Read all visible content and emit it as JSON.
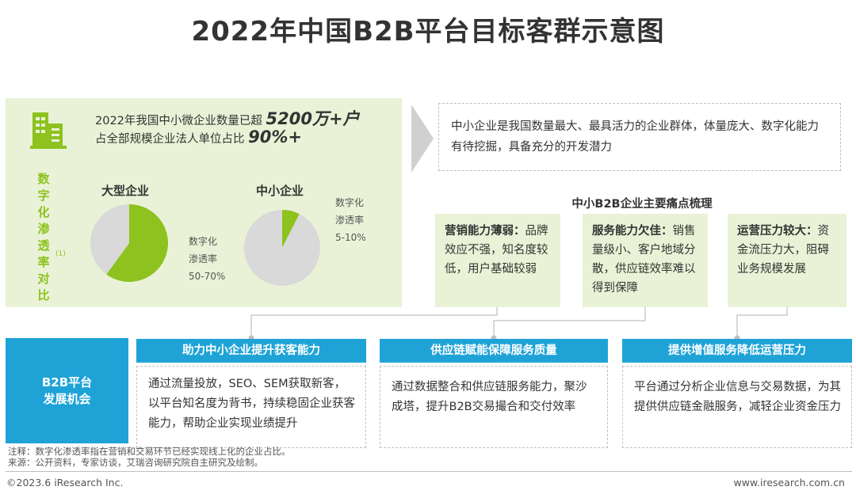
{
  "title": "2022年中国B2B平台目标客群示意图",
  "left_panel": {
    "stat_line1_prefix": "2022年我国中小微企业数量已超",
    "stat_line1_value": "5200万+户",
    "stat_line2_prefix": "占全部规模企业法人单位占比",
    "stat_line2_value": "90%+",
    "vertical_label": [
      "数",
      "字",
      "化",
      "渗",
      "透",
      "率",
      "对",
      "比"
    ],
    "vertical_note": "(1)",
    "large_enterprise": {
      "label": "大型企业",
      "rate_label_1": "数字化",
      "rate_label_2": "渗透率",
      "rate_value": "50-70%"
    },
    "small_enterprise": {
      "label": "中小企业",
      "rate_label_1": "数字化",
      "rate_label_2": "渗透率",
      "rate_value": "5-10%"
    }
  },
  "colors": {
    "accent_green": "#8dc21f",
    "pie_green": "#8dc21f",
    "pie_gray": "#d9d9d9",
    "panel_green": "#e9f2d6",
    "accent_blue": "#1fa3d7"
  },
  "chart_data": [
    {
      "type": "pie",
      "title": "大型企业",
      "slices": [
        {
          "value": 60,
          "color": "#8dc21f"
        },
        {
          "value": 40,
          "color": "#d9d9d9"
        }
      ]
    },
    {
      "type": "pie",
      "title": "中小企业",
      "slices": [
        {
          "value": 7.5,
          "color": "#8dc21f"
        },
        {
          "value": 92.5,
          "color": "#d9d9d9"
        }
      ]
    }
  ],
  "description": "中小企业是我国数量最大、最具活力的企业群体，体量庞大、数字化能力有待挖掘，具备充分的开发潜力",
  "pain_title": "中小B2B企业主要痛点梳理",
  "pain_points": [
    {
      "head": "营销能力薄弱：",
      "body": "品牌效应不强，知名度较低，用户基础较弱"
    },
    {
      "head": "服务能力欠佳：",
      "body": "销售量级小、客户地域分散，供应链效率难以得到保障"
    },
    {
      "head": "运营压力较大：",
      "body": "资金流压力大，阻碍业务规模发展"
    }
  ],
  "b2b_box": {
    "line1": "B2B平台",
    "line2": "发展机会"
  },
  "opportunities": [
    {
      "head": "助力中小企业提升获客能力",
      "body": "通过流量投放，SEO、SEM获取新客，以平台知名度为背书，持续稳固企业获客能力，帮助企业实现业绩提升"
    },
    {
      "head": "供应链赋能保障服务质量",
      "body": "通过数据整合和供应链服务能力，聚沙成塔，提升B2B交易撮合和交付效率"
    },
    {
      "head": "提供增值服务降低运营压力",
      "body": "平台通过分析企业信息与交易数据，为其提供供应链金融服务，减轻企业资金压力"
    }
  ],
  "notes": {
    "line1": "注释：数字化渗透率指在营销和交易环节已经实现线上化的企业占比。",
    "line2": "来源：公开资料，专家访谈，艾瑞咨询研究院自主研究及绘制。"
  },
  "footer": {
    "copyright": "©2023.6 iResearch Inc.",
    "website": "www.iresearch.com.cn"
  }
}
